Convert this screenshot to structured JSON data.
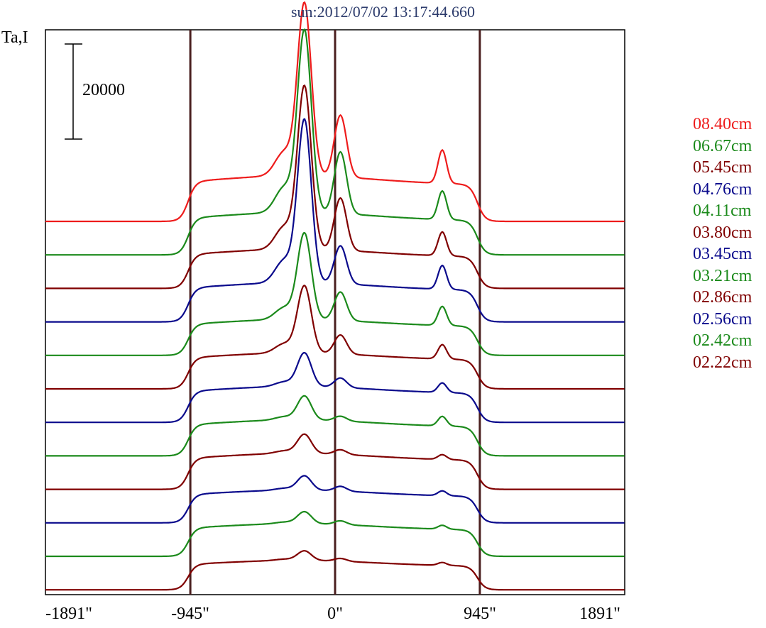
{
  "chart_data": {
    "type": "line",
    "title": "sun:2012/07/02 13:17:44.660",
    "ylabel": "Ta,I",
    "scale_bar": 20000,
    "xlim": [
      -1891,
      1891
    ],
    "x_ticks": [
      -1891,
      -945,
      0,
      945,
      1891
    ],
    "x_tick_labels": [
      "-1891\"",
      "-945\"",
      "0\"",
      "945\"",
      "1891\""
    ],
    "vlines": [
      -945,
      0,
      945
    ],
    "legend_position": "right",
    "colors": {
      "red": "#ee1c1c",
      "green": "#1b8a1b",
      "maroon": "#800000",
      "navy": "#0a0a8c",
      "vline": "#4a1f1f"
    },
    "legend": [
      {
        "label": "08.40cm",
        "color": "#ee1c1c"
      },
      {
        "label": "06.67cm",
        "color": "#1b8a1b"
      },
      {
        "label": "05.45cm",
        "color": "#800000"
      },
      {
        "label": "04.76cm",
        "color": "#0a0a8c"
      },
      {
        "label": "04.11cm",
        "color": "#1b8a1b"
      },
      {
        "label": "03.80cm",
        "color": "#800000"
      },
      {
        "label": "03.45cm",
        "color": "#0a0a8c"
      },
      {
        "label": "03.21cm",
        "color": "#1b8a1b"
      },
      {
        "label": "02.86cm",
        "color": "#800000"
      },
      {
        "label": "02.56cm",
        "color": "#0a0a8c"
      },
      {
        "label": "02.42cm",
        "color": "#1b8a1b"
      },
      {
        "label": "02.22cm",
        "color": "#800000"
      }
    ],
    "series": [
      {
        "color": "#ee1c1c",
        "disk_level": 14000,
        "peak": 36000,
        "peak2": 13000,
        "peak3": 7000
      },
      {
        "color": "#1b8a1b",
        "disk_level": 13000,
        "peak": 38000,
        "peak2": 13000,
        "peak3": 6000
      },
      {
        "color": "#800000",
        "disk_level": 12000,
        "peak": 34000,
        "peak2": 11000,
        "peak3": 5000
      },
      {
        "color": "#0a0a8c",
        "disk_level": 12000,
        "peak": 34000,
        "peak2": 8000,
        "peak3": 5000
      },
      {
        "color": "#1b8a1b",
        "disk_level": 11000,
        "peak": 18000,
        "peak2": 6000,
        "peak3": 4000
      },
      {
        "color": "#800000",
        "disk_level": 11000,
        "peak": 14000,
        "peak2": 4000,
        "peak3": 3000
      },
      {
        "color": "#0a0a8c",
        "disk_level": 11000,
        "peak": 7000,
        "peak2": 2000,
        "peak3": 2000
      },
      {
        "color": "#1b8a1b",
        "disk_level": 11000,
        "peak": 5000,
        "peak2": 1000,
        "peak3": 2000
      },
      {
        "color": "#800000",
        "disk_level": 11000,
        "peak": 4000,
        "peak2": 1000,
        "peak3": 1000
      },
      {
        "color": "#0a0a8c",
        "disk_level": 10000,
        "peak": 3000,
        "peak2": 1000,
        "peak3": 1000
      },
      {
        "color": "#1b8a1b",
        "disk_level": 10000,
        "peak": 2500,
        "peak2": 800,
        "peak3": 800
      },
      {
        "color": "#800000",
        "disk_level": 9000,
        "peak": 2000,
        "peak2": 600,
        "peak3": 600
      }
    ]
  }
}
